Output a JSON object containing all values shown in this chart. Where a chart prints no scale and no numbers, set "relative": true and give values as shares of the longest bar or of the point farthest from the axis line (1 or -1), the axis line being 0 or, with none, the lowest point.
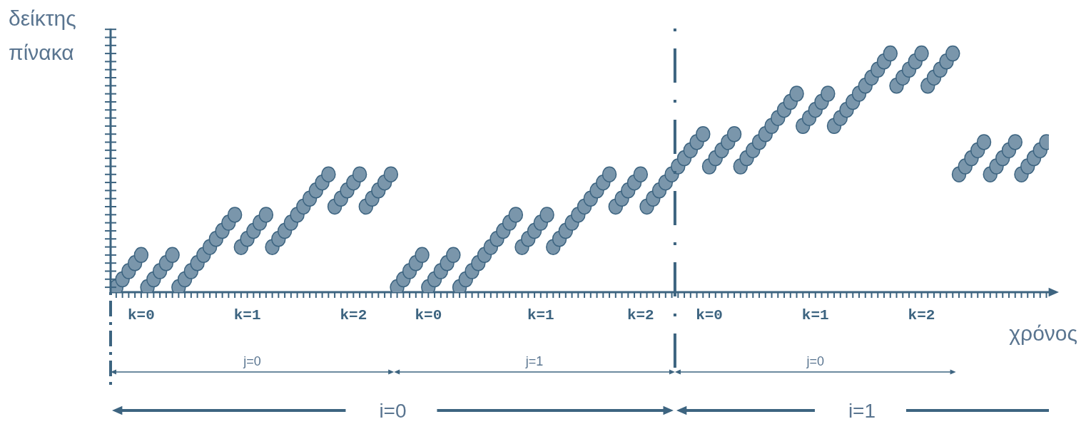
{
  "chart_data": {
    "type": "scatter",
    "relative": true,
    "marker": "circle",
    "xlabel": "χρόνος",
    "ylabel": "δείκτης πίνακα",
    "categories": [
      null,
      null,
      null,
      null,
      "k=0",
      null,
      null,
      null,
      null,
      null,
      null,
      null,
      null,
      null,
      null,
      null,
      null,
      null,
      null,
      null,
      null,
      "k=1",
      null,
      null,
      null,
      null,
      null,
      null,
      null,
      null,
      null,
      null,
      null,
      null,
      null,
      null,
      null,
      null,
      "k=2",
      null,
      null,
      null,
      null,
      null,
      null,
      null,
      null,
      null,
      null,
      null,
      "k=0",
      null,
      null,
      null,
      null,
      null,
      null,
      null,
      null,
      null,
      null,
      null,
      null,
      null,
      null,
      null,
      null,
      null,
      "k=1",
      null,
      null,
      null,
      null,
      null,
      null,
      null,
      null,
      null,
      null,
      null,
      null,
      null,
      null,
      null,
      "k=2",
      null,
      null,
      null,
      null,
      null,
      null,
      null,
      null,
      null,
      null,
      "k=0",
      null,
      null,
      null,
      null,
      null,
      null,
      null,
      null,
      null,
      null,
      null,
      null,
      null,
      null,
      null,
      null,
      "k=1",
      null,
      null,
      null,
      null,
      null,
      null,
      null,
      null,
      null,
      null,
      null,
      null,
      null,
      null,
      null,
      null,
      "k=2",
      null,
      null,
      null,
      null,
      null,
      null,
      null,
      null,
      null,
      null,
      null,
      null,
      null,
      null,
      null,
      null,
      null,
      null,
      null,
      null
    ],
    "series": [
      {
        "color": "#7a96ab",
        "values": [
          0,
          0.034,
          0.069,
          0.103,
          0.138,
          0,
          0.034,
          0.069,
          0.103,
          0.138,
          0,
          0.034,
          0.069,
          0.103,
          0.138,
          0.172,
          0.207,
          0.241,
          0.276,
          0.31,
          0.172,
          0.207,
          0.241,
          0.276,
          0.31,
          0.172,
          0.207,
          0.241,
          0.276,
          0.31,
          0.345,
          0.379,
          0.414,
          0.448,
          0.483,
          0.345,
          0.379,
          0.414,
          0.448,
          0.483,
          0.345,
          0.379,
          0.414,
          0.448,
          0.483,
          0,
          0.034,
          0.069,
          0.103,
          0.138,
          0,
          0.034,
          0.069,
          0.103,
          0.138,
          0,
          0.034,
          0.069,
          0.103,
          0.138,
          0.172,
          0.207,
          0.241,
          0.276,
          0.31,
          0.172,
          0.207,
          0.241,
          0.276,
          0.31,
          0.172,
          0.207,
          0.241,
          0.276,
          0.31,
          0.345,
          0.379,
          0.414,
          0.448,
          0.483,
          0.345,
          0.379,
          0.414,
          0.448,
          0.483,
          0.345,
          0.379,
          0.414,
          0.448,
          0.483,
          0.517,
          0.552,
          0.586,
          0.621,
          0.655,
          0.517,
          0.552,
          0.586,
          0.621,
          0.655,
          0.517,
          0.552,
          0.586,
          0.621,
          0.655,
          0.69,
          0.724,
          0.759,
          0.793,
          0.828,
          0.69,
          0.724,
          0.759,
          0.793,
          0.828,
          0.69,
          0.724,
          0.759,
          0.793,
          0.828,
          0.862,
          0.897,
          0.931,
          0.966,
          1,
          0.862,
          0.897,
          0.931,
          0.966,
          1,
          0.862,
          0.897,
          0.931,
          0.966,
          1,
          0.483,
          0.517,
          0.552,
          0.586,
          0.621,
          0.483,
          0.517,
          0.552,
          0.586,
          0.621,
          0.483,
          0.517,
          0.552,
          0.586,
          0.621
        ]
      }
    ],
    "annotations": [
      "j=0",
      "j=1",
      "j=0",
      "i=0",
      "i=1"
    ]
  }
}
